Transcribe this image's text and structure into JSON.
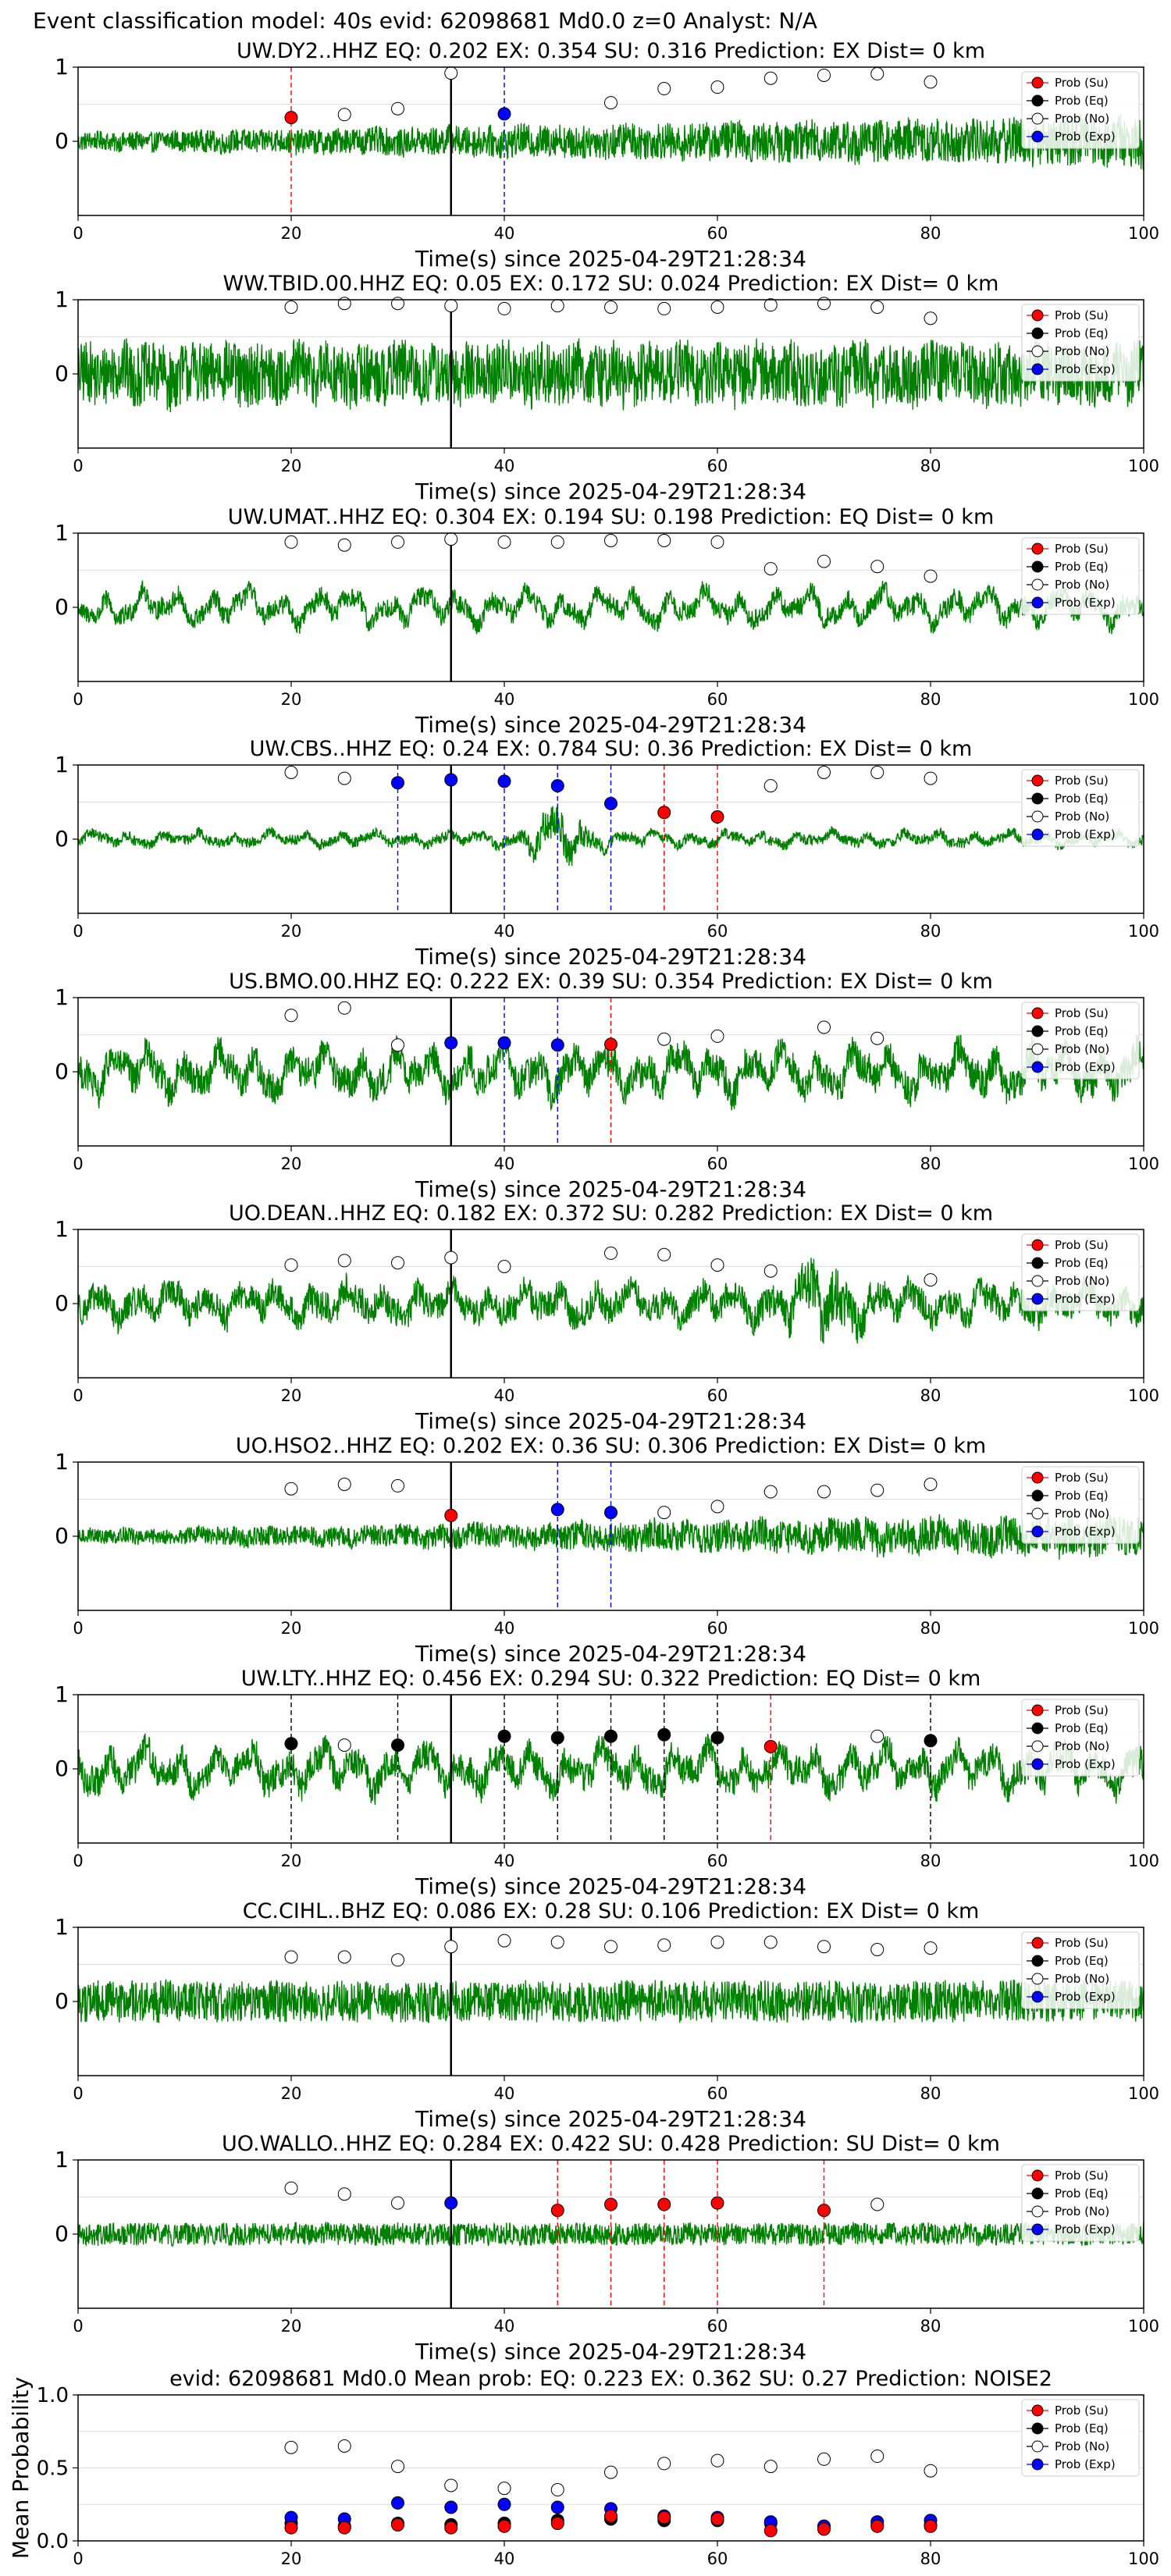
{
  "suptitle": "Event classification model: 40s evid: 62098681 Md0.0 z=0 Analyst: N/A",
  "legend_labels": [
    "Prob (Su)",
    "Prob (Eq)",
    "Prob (No)",
    "Prob (Exp)"
  ],
  "colors": {
    "waveform": "#008000",
    "su": "#ff0000",
    "eq": "#000000",
    "no": "#ffffff",
    "exp": "#0000ff",
    "su_line": "#ff0000",
    "eq_line": "#000000",
    "exp_line": "#0000ff",
    "pick_line": "#000000",
    "grid": "#dddddd"
  },
  "chart_data": [
    {
      "type": "scatter",
      "station": "UW.DY2..HHZ",
      "title": "UW.DY2..HHZ    EQ: 0.202  EX: 0.354  SU: 0.316   Prediction: EX    Dist= 0 km",
      "xlabel": "Time(s) since 2025-04-29T21:28:34",
      "xlim": [
        0,
        100
      ],
      "ylim": [
        -1,
        1
      ],
      "xticks": [
        "0",
        "20",
        "40",
        "60",
        "80",
        "100"
      ],
      "yticks": [
        "0",
        "1"
      ],
      "pick_time": 35,
      "waveform": {
        "amplitude": 0.22,
        "noise": 0.8,
        "envelope": "rising"
      },
      "prob_no": {
        "x": [
          25,
          30,
          35,
          50,
          55,
          60,
          65,
          70,
          75,
          80
        ],
        "y": [
          0.36,
          0.44,
          0.92,
          0.52,
          0.71,
          0.73,
          0.85,
          0.89,
          0.91,
          0.8
        ]
      },
      "prob_su": {
        "x": [
          20
        ],
        "y": [
          0.32
        ]
      },
      "prob_eq": {
        "x": [],
        "y": []
      },
      "prob_exp": {
        "x": [
          40
        ],
        "y": [
          0.37
        ]
      },
      "vlines": [
        {
          "x": 20,
          "class": "su"
        },
        {
          "x": 40,
          "class": "exp"
        }
      ]
    },
    {
      "type": "scatter",
      "station": "WW.TBID.00.HHZ",
      "title": "WW.TBID.00.HHZ    EQ: 0.05  EX: 0.172  SU: 0.024   Prediction: EX    Dist= 0 km",
      "xlabel": "Time(s) since 2025-04-29T21:28:34",
      "xlim": [
        0,
        100
      ],
      "ylim": [
        -1,
        1
      ],
      "xticks": [
        "0",
        "20",
        "40",
        "60",
        "80",
        "100"
      ],
      "yticks": [
        "0",
        "1"
      ],
      "pick_time": 35,
      "waveform": {
        "amplitude": 0.4,
        "noise": 0.75,
        "envelope": "flat"
      },
      "prob_no": {
        "x": [
          20,
          25,
          30,
          35,
          40,
          45,
          50,
          55,
          60,
          65,
          70,
          75,
          80
        ],
        "y": [
          0.9,
          0.95,
          0.95,
          0.92,
          0.88,
          0.92,
          0.9,
          0.88,
          0.9,
          0.93,
          0.95,
          0.9,
          0.75
        ]
      },
      "prob_su": {
        "x": [],
        "y": []
      },
      "prob_eq": {
        "x": [],
        "y": []
      },
      "prob_exp": {
        "x": [],
        "y": []
      },
      "vlines": []
    },
    {
      "type": "scatter",
      "station": "UW.UMAT..HHZ",
      "title": "UW.UMAT..HHZ    EQ: 0.304  EX: 0.194  SU: 0.198   Prediction: EQ    Dist= 0 km",
      "xlabel": "Time(s) since 2025-04-29T21:28:34",
      "xlim": [
        0,
        100
      ],
      "ylim": [
        -1,
        1
      ],
      "xticks": [
        "0",
        "20",
        "40",
        "60",
        "80",
        "100"
      ],
      "yticks": [
        "0",
        "1"
      ],
      "pick_time": 35,
      "waveform": {
        "amplitude": 0.32,
        "noise": 0.3,
        "envelope": "flat"
      },
      "prob_no": {
        "x": [
          20,
          25,
          30,
          35,
          40,
          45,
          50,
          55,
          60,
          65,
          70,
          75,
          80
        ],
        "y": [
          0.88,
          0.84,
          0.88,
          0.92,
          0.88,
          0.88,
          0.9,
          0.9,
          0.88,
          0.52,
          0.62,
          0.55,
          0.42
        ]
      },
      "prob_su": {
        "x": [],
        "y": []
      },
      "prob_eq": {
        "x": [],
        "y": []
      },
      "prob_exp": {
        "x": [],
        "y": []
      },
      "vlines": []
    },
    {
      "type": "scatter",
      "station": "UW.CBS..HHZ",
      "title": "UW.CBS..HHZ    EQ: 0.24  EX: 0.784  SU: 0.36   Prediction: EX    Dist= 0 km",
      "xlabel": "Time(s) since 2025-04-29T21:28:34",
      "xlim": [
        0,
        100
      ],
      "ylim": [
        -1,
        1
      ],
      "xticks": [
        "0",
        "20",
        "40",
        "60",
        "80",
        "100"
      ],
      "yticks": [
        "0",
        "1"
      ],
      "pick_time": 35,
      "waveform": {
        "amplitude": 0.14,
        "noise": 0.35,
        "envelope": "burst45"
      },
      "prob_no": {
        "x": [
          20,
          25,
          65,
          70,
          75,
          80
        ],
        "y": [
          0.9,
          0.82,
          0.72,
          0.9,
          0.9,
          0.82
        ]
      },
      "prob_su": {
        "x": [
          55,
          60
        ],
        "y": [
          0.36,
          0.3
        ]
      },
      "prob_eq": {
        "x": [],
        "y": []
      },
      "prob_exp": {
        "x": [
          30,
          35,
          40,
          45,
          50
        ],
        "y": [
          0.76,
          0.8,
          0.78,
          0.72,
          0.48
        ]
      },
      "vlines": [
        {
          "x": 30,
          "class": "exp"
        },
        {
          "x": 40,
          "class": "exp"
        },
        {
          "x": 45,
          "class": "exp"
        },
        {
          "x": 50,
          "class": "exp"
        },
        {
          "x": 55,
          "class": "su"
        },
        {
          "x": 60,
          "class": "su"
        }
      ]
    },
    {
      "type": "scatter",
      "station": "US.BMO.00.HHZ",
      "title": "US.BMO.00.HHZ    EQ: 0.222  EX: 0.39  SU: 0.354   Prediction: EX    Dist= 0 km",
      "xlabel": "Time(s) since 2025-04-29T21:28:34",
      "xlim": [
        0,
        100
      ],
      "ylim": [
        -1,
        1
      ],
      "xticks": [
        "0",
        "20",
        "40",
        "60",
        "80",
        "100"
      ],
      "yticks": [
        "0",
        "1"
      ],
      "pick_time": 35,
      "waveform": {
        "amplitude": 0.45,
        "noise": 0.35,
        "envelope": "flat"
      },
      "prob_no": {
        "x": [
          20,
          25,
          30,
          55,
          60,
          70,
          75
        ],
        "y": [
          0.76,
          0.86,
          0.36,
          0.44,
          0.48,
          0.6,
          0.45
        ]
      },
      "prob_su": {
        "x": [
          50
        ],
        "y": [
          0.37
        ]
      },
      "prob_eq": {
        "x": [],
        "y": []
      },
      "prob_exp": {
        "x": [
          35,
          40,
          45
        ],
        "y": [
          0.39,
          0.39,
          0.36
        ]
      },
      "vlines": [
        {
          "x": 40,
          "class": "exp"
        },
        {
          "x": 45,
          "class": "exp"
        },
        {
          "x": 50,
          "class": "su"
        }
      ]
    },
    {
      "type": "scatter",
      "station": "UO.DEAN..HHZ",
      "title": "UO.DEAN..HHZ    EQ: 0.182  EX: 0.372  SU: 0.282   Prediction: EX    Dist= 0 km",
      "xlabel": "Time(s) since 2025-04-29T21:28:34",
      "xlim": [
        0,
        100
      ],
      "ylim": [
        -1,
        1
      ],
      "xticks": [
        "0",
        "20",
        "40",
        "60",
        "80",
        "100"
      ],
      "yticks": [
        "0",
        "1"
      ],
      "pick_time": 35,
      "waveform": {
        "amplitude": 0.35,
        "noise": 0.4,
        "envelope": "burst70"
      },
      "prob_no": {
        "x": [
          20,
          25,
          30,
          35,
          40,
          50,
          55,
          60,
          65,
          80
        ],
        "y": [
          0.52,
          0.58,
          0.55,
          0.62,
          0.5,
          0.68,
          0.66,
          0.52,
          0.44,
          0.32
        ]
      },
      "prob_su": {
        "x": [],
        "y": []
      },
      "prob_eq": {
        "x": [],
        "y": []
      },
      "prob_exp": {
        "x": [],
        "y": []
      },
      "vlines": []
    },
    {
      "type": "scatter",
      "station": "UO.HSO2..HHZ",
      "title": "UO.HSO2..HHZ    EQ: 0.202  EX: 0.36  SU: 0.306   Prediction: EX    Dist= 0 km",
      "xlabel": "Time(s) since 2025-04-29T21:28:34",
      "xlim": [
        0,
        100
      ],
      "ylim": [
        -1,
        1
      ],
      "xticks": [
        "0",
        "20",
        "40",
        "60",
        "80",
        "100"
      ],
      "yticks": [
        "0",
        "1"
      ],
      "pick_time": 35,
      "waveform": {
        "amplitude": 0.2,
        "noise": 0.7,
        "envelope": "rising"
      },
      "prob_no": {
        "x": [
          20,
          25,
          30,
          55,
          60,
          65,
          70,
          75,
          80
        ],
        "y": [
          0.64,
          0.7,
          0.68,
          0.32,
          0.4,
          0.6,
          0.6,
          0.62,
          0.7
        ]
      },
      "prob_su": {
        "x": [
          35
        ],
        "y": [
          0.28
        ]
      },
      "prob_eq": {
        "x": [],
        "y": []
      },
      "prob_exp": {
        "x": [
          45,
          50
        ],
        "y": [
          0.36,
          0.32
        ]
      },
      "vlines": [
        {
          "x": 45,
          "class": "exp"
        },
        {
          "x": 50,
          "class": "exp"
        }
      ]
    },
    {
      "type": "scatter",
      "station": "UW.LTY..HHZ",
      "title": "UW.LTY..HHZ    EQ: 0.456  EX: 0.294  SU: 0.322   Prediction: EQ    Dist= 0 km",
      "xlabel": "Time(s) since 2025-04-29T21:28:34",
      "xlim": [
        0,
        100
      ],
      "ylim": [
        -1,
        1
      ],
      "xticks": [
        "0",
        "20",
        "40",
        "60",
        "80",
        "100"
      ],
      "yticks": [
        "0",
        "1"
      ],
      "pick_time": 35,
      "waveform": {
        "amplitude": 0.42,
        "noise": 0.35,
        "envelope": "flat"
      },
      "prob_no": {
        "x": [
          25,
          75
        ],
        "y": [
          0.32,
          0.44
        ]
      },
      "prob_su": {
        "x": [
          65
        ],
        "y": [
          0.3
        ]
      },
      "prob_eq": {
        "x": [
          20,
          30,
          40,
          45,
          50,
          55,
          60,
          80
        ],
        "y": [
          0.34,
          0.32,
          0.44,
          0.42,
          0.44,
          0.46,
          0.42,
          0.38
        ]
      },
      "prob_exp": {
        "x": [],
        "y": []
      },
      "vlines": [
        {
          "x": 20,
          "class": "eq"
        },
        {
          "x": 30,
          "class": "eq"
        },
        {
          "x": 40,
          "class": "eq"
        },
        {
          "x": 45,
          "class": "eq"
        },
        {
          "x": 50,
          "class": "eq"
        },
        {
          "x": 55,
          "class": "eq"
        },
        {
          "x": 60,
          "class": "eq"
        },
        {
          "x": 65,
          "class": "su"
        },
        {
          "x": 80,
          "class": "eq"
        }
      ]
    },
    {
      "type": "scatter",
      "station": "CC.CIHL..BHZ",
      "title": "CC.CIHL..BHZ    EQ: 0.086  EX: 0.28  SU: 0.106   Prediction: EX    Dist= 0 km",
      "xlabel": "Time(s) since 2025-04-29T21:28:34",
      "xlim": [
        0,
        100
      ],
      "ylim": [
        -1,
        1
      ],
      "xticks": [
        "0",
        "20",
        "40",
        "60",
        "80",
        "100"
      ],
      "yticks": [
        "0",
        "1"
      ],
      "pick_time": 35,
      "waveform": {
        "amplitude": 0.22,
        "noise": 0.9,
        "envelope": "flat"
      },
      "prob_no": {
        "x": [
          20,
          25,
          30,
          35,
          40,
          45,
          50,
          55,
          60,
          65,
          70,
          75,
          80
        ],
        "y": [
          0.6,
          0.6,
          0.56,
          0.74,
          0.82,
          0.8,
          0.74,
          0.76,
          0.8,
          0.8,
          0.74,
          0.7,
          0.72
        ]
      },
      "prob_su": {
        "x": [],
        "y": []
      },
      "prob_eq": {
        "x": [],
        "y": []
      },
      "prob_exp": {
        "x": [],
        "y": []
      },
      "vlines": []
    },
    {
      "type": "scatter",
      "station": "UO.WALLO..HHZ",
      "title": "UO.WALLO..HHZ    EQ: 0.284  EX: 0.422  SU: 0.428   Prediction: SU    Dist= 0 km",
      "xlabel": "Time(s) since 2025-04-29T21:28:34",
      "xlim": [
        0,
        100
      ],
      "ylim": [
        -1,
        1
      ],
      "xticks": [
        "0",
        "20",
        "40",
        "60",
        "80",
        "100"
      ],
      "yticks": [
        "0",
        "1"
      ],
      "pick_time": 35,
      "waveform": {
        "amplitude": 0.12,
        "noise": 0.9,
        "envelope": "flat"
      },
      "prob_no": {
        "x": [
          20,
          25,
          30,
          75
        ],
        "y": [
          0.62,
          0.54,
          0.42,
          0.4
        ]
      },
      "prob_su": {
        "x": [
          45,
          50,
          55,
          60,
          70
        ],
        "y": [
          0.32,
          0.4,
          0.4,
          0.42,
          0.32
        ]
      },
      "prob_eq": {
        "x": [],
        "y": []
      },
      "prob_exp": {
        "x": [
          35
        ],
        "y": [
          0.42
        ]
      },
      "vlines": [
        {
          "x": 45,
          "class": "su"
        },
        {
          "x": 50,
          "class": "su"
        },
        {
          "x": 55,
          "class": "su"
        },
        {
          "x": 60,
          "class": "su"
        },
        {
          "x": 70,
          "class": "su"
        }
      ]
    },
    {
      "type": "scatter",
      "station": "mean",
      "title": "evid: 62098681  Md0.0   Mean prob:   EQ: 0.223  EX: 0.362  SU: 0.27   Prediction: NOISE2",
      "xlabel": "",
      "ylabel": "Mean Probability",
      "xlim": [
        0,
        100
      ],
      "ylim": [
        0,
        1
      ],
      "xticks": [
        "0",
        "20",
        "40",
        "60",
        "80",
        "100"
      ],
      "yticks": [
        "0.0",
        "0.5",
        "1.0"
      ],
      "prob_no": {
        "x": [
          20,
          25,
          30,
          35,
          40,
          45,
          50,
          55,
          60,
          65,
          70,
          75,
          80
        ],
        "y": [
          0.64,
          0.65,
          0.51,
          0.38,
          0.36,
          0.35,
          0.47,
          0.53,
          0.55,
          0.51,
          0.56,
          0.58,
          0.48
        ]
      },
      "prob_su": {
        "x": [
          20,
          25,
          30,
          35,
          40,
          45,
          50,
          55,
          60,
          65,
          70,
          75,
          80
        ],
        "y": [
          0.09,
          0.09,
          0.11,
          0.09,
          0.1,
          0.12,
          0.17,
          0.16,
          0.15,
          0.07,
          0.08,
          0.1,
          0.1
        ]
      },
      "prob_eq": {
        "x": [
          20,
          25,
          30,
          35,
          40,
          45,
          50,
          55,
          60,
          65,
          70,
          75,
          80
        ],
        "y": [
          0.12,
          0.1,
          0.12,
          0.11,
          0.12,
          0.14,
          0.15,
          0.14,
          0.14,
          0.12,
          0.1,
          0.11,
          0.11
        ]
      },
      "prob_exp": {
        "x": [
          20,
          25,
          30,
          35,
          40,
          45,
          50,
          55,
          60,
          65,
          70,
          75,
          80
        ],
        "y": [
          0.16,
          0.15,
          0.26,
          0.23,
          0.25,
          0.23,
          0.22,
          0.17,
          0.16,
          0.13,
          0.1,
          0.13,
          0.14
        ]
      },
      "vlines": []
    }
  ]
}
